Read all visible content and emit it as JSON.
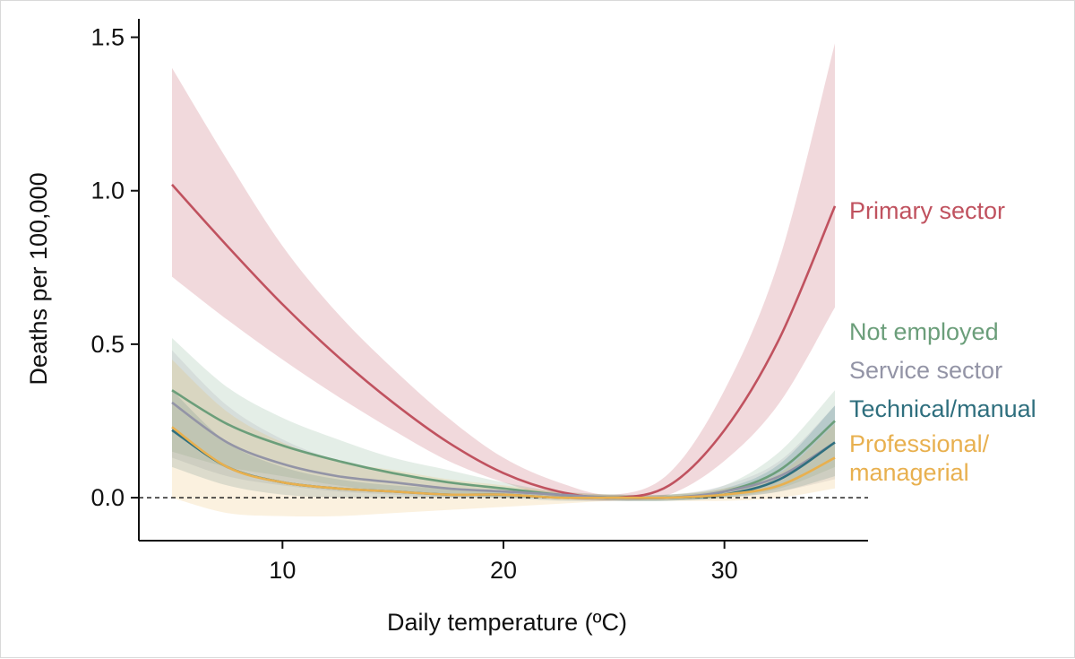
{
  "chart_data": {
    "type": "line",
    "xlabel": "Daily temperature (ºC)",
    "ylabel": "Deaths per 100,000",
    "xlim": [
      3.5,
      36.5
    ],
    "ylim": [
      -0.14,
      1.56
    ],
    "xticks": [
      10,
      20,
      30
    ],
    "xtick_labels": [
      "10",
      "20",
      "30"
    ],
    "yticks": [
      0,
      0.5,
      1,
      1.5
    ],
    "ytick_labels": [
      "0.0",
      "0.5",
      "1.0",
      "1.5"
    ],
    "grid": false,
    "legend": "direct labels at right end of lines",
    "reference_line": {
      "y": 0,
      "style": "dashed"
    },
    "x": [
      5,
      7.5,
      10,
      12.5,
      15,
      17.5,
      20,
      22.5,
      25,
      27.5,
      30,
      32.5,
      35
    ],
    "series": [
      {
        "name": "Primary sector",
        "color": "#c0525f",
        "label_lines": [
          "Primary sector"
        ],
        "values": [
          1.02,
          0.82,
          0.63,
          0.46,
          0.31,
          0.18,
          0.08,
          0.02,
          0.0,
          0.04,
          0.22,
          0.52,
          0.95
        ],
        "lower": [
          0.72,
          0.58,
          0.45,
          0.33,
          0.22,
          0.12,
          0.05,
          0.0,
          -0.01,
          0.01,
          0.12,
          0.31,
          0.62
        ],
        "upper": [
          1.4,
          1.1,
          0.82,
          0.6,
          0.42,
          0.26,
          0.13,
          0.05,
          0.01,
          0.08,
          0.35,
          0.78,
          1.48
        ]
      },
      {
        "name": "Not employed",
        "color": "#6b9e7a",
        "label_lines": [
          "Not employed"
        ],
        "values": [
          0.35,
          0.24,
          0.17,
          0.12,
          0.08,
          0.05,
          0.03,
          0.01,
          0.0,
          0.0,
          0.02,
          0.09,
          0.25
        ],
        "lower": [
          0.15,
          0.1,
          0.07,
          0.04,
          0.02,
          0.01,
          0.0,
          0.0,
          -0.01,
          -0.01,
          0.0,
          0.03,
          0.1
        ],
        "upper": [
          0.52,
          0.36,
          0.26,
          0.19,
          0.13,
          0.09,
          0.05,
          0.02,
          0.01,
          0.01,
          0.04,
          0.15,
          0.35
        ]
      },
      {
        "name": "Service sector",
        "color": "#9394a6",
        "label_lines": [
          "Service sector"
        ],
        "values": [
          0.31,
          0.18,
          0.11,
          0.07,
          0.05,
          0.03,
          0.02,
          0.01,
          0.0,
          0.0,
          0.02,
          0.07,
          0.18
        ],
        "lower": [
          0.13,
          0.07,
          0.04,
          0.02,
          0.01,
          0.0,
          0.0,
          0.0,
          -0.01,
          -0.01,
          0.0,
          0.02,
          0.06
        ],
        "upper": [
          0.48,
          0.3,
          0.19,
          0.12,
          0.08,
          0.05,
          0.03,
          0.02,
          0.01,
          0.01,
          0.04,
          0.12,
          0.3
        ]
      },
      {
        "name": "Technical/manual",
        "color": "#2f6f7e",
        "label_lines": [
          "Technical/manual"
        ],
        "values": [
          0.22,
          0.1,
          0.05,
          0.03,
          0.02,
          0.01,
          0.01,
          0.0,
          0.0,
          0.0,
          0.01,
          0.06,
          0.18
        ],
        "lower": [
          0.1,
          0.04,
          0.01,
          0.0,
          0.0,
          0.0,
          0.0,
          -0.01,
          -0.01,
          -0.01,
          0.0,
          0.02,
          0.07
        ],
        "upper": [
          0.35,
          0.18,
          0.1,
          0.06,
          0.04,
          0.03,
          0.02,
          0.01,
          0.01,
          0.01,
          0.03,
          0.11,
          0.3
        ]
      },
      {
        "name": "Professional/managerial",
        "color": "#e8b04f",
        "label_lines": [
          "Professional/",
          "managerial"
        ],
        "values": [
          0.23,
          0.1,
          0.05,
          0.03,
          0.02,
          0.01,
          0.01,
          0.0,
          0.0,
          0.0,
          0.01,
          0.04,
          0.13
        ],
        "lower": [
          0.0,
          -0.05,
          -0.06,
          -0.06,
          -0.05,
          -0.04,
          -0.03,
          -0.02,
          -0.01,
          -0.01,
          -0.01,
          0.0,
          0.03
        ],
        "upper": [
          0.45,
          0.28,
          0.18,
          0.12,
          0.09,
          0.06,
          0.04,
          0.02,
          0.01,
          0.01,
          0.03,
          0.08,
          0.24
        ]
      }
    ]
  }
}
